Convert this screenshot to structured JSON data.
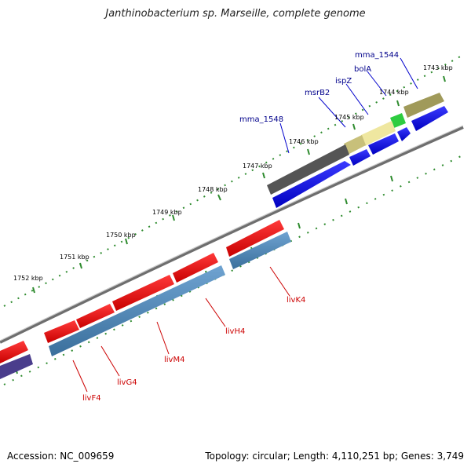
{
  "title": "Janthinobacterium sp. Marseille, complete genome",
  "footer": {
    "accession": "Accession: NC_009659",
    "stats": "Topology: circular; Length: 4,110,251 bp; Genes: 3,749"
  },
  "colors": {
    "forward_cds": "#0000e6",
    "reverse_cds": "#e60000",
    "reverse_operon": "#4682b4",
    "forward_dark": "#555555",
    "forward_khaki": "#a09a5a",
    "forward_light": "#efe7a0",
    "forward_green": "#2ecc40",
    "backbone": "#808080",
    "ticks": "#2e8b2e",
    "fwd_label": "#00008b",
    "rev_label": "#cc0000"
  },
  "scale_labels": [
    "1743 kbp",
    "1744 kbp",
    "1745 kbp",
    "1746 kbp",
    "1747 kbp",
    "1748 kbp",
    "1749 kbp",
    "1750 kbp",
    "1751 kbp",
    "1752 kbp"
  ],
  "forward_gene_labels": [
    "mma_1544",
    "bolA",
    "ispZ",
    "msrB2",
    "mma_1548"
  ],
  "reverse_gene_labels": [
    "livK4",
    "livH4",
    "livM4",
    "livG4",
    "livF4"
  ]
}
